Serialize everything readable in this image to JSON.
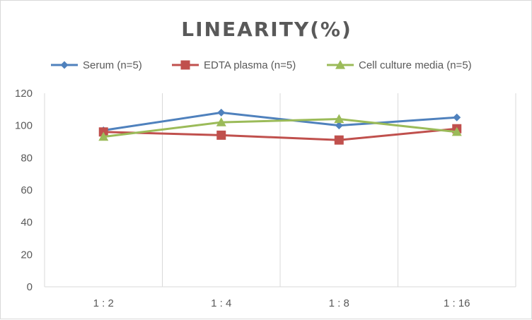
{
  "chart_data": {
    "type": "line",
    "title": "LINEARITY(%)",
    "categories": [
      "1:2",
      "1:4",
      "1:8",
      "1:16"
    ],
    "ylim": [
      0,
      120
    ],
    "yticks": [
      0,
      20,
      40,
      60,
      80,
      100,
      120
    ],
    "grid": "vertical",
    "legend_position": "top",
    "series": [
      {
        "name": "Serum (n=5)",
        "color": "#4f81bd",
        "marker": "diamond",
        "values": [
          97,
          108,
          100,
          105
        ]
      },
      {
        "name": "EDTA plasma (n=5)",
        "color": "#c0504d",
        "marker": "square",
        "values": [
          96,
          94,
          91,
          98
        ]
      },
      {
        "name": "Cell culture media (n=5)",
        "color": "#9bbb59",
        "marker": "triangle",
        "values": [
          93,
          102,
          104,
          96
        ]
      }
    ]
  }
}
